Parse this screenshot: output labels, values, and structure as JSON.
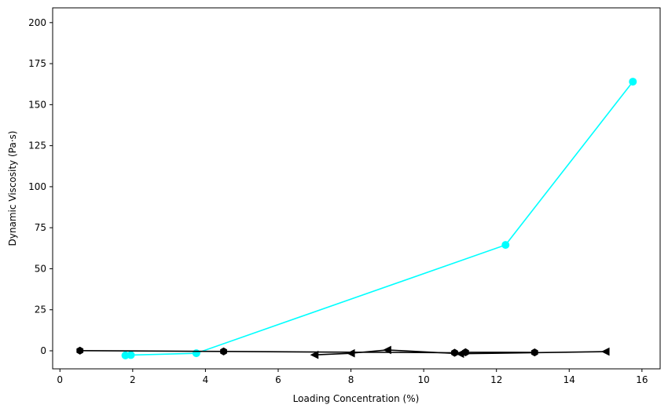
{
  "chart_data": {
    "type": "line",
    "title": "",
    "xlabel": "Loading Concentration (%)",
    "ylabel": "Dynamic Viscosity (Pa·s)",
    "xlim": [
      -0.2,
      16.5
    ],
    "ylim": [
      -11,
      209
    ],
    "xticks": [
      0,
      2,
      4,
      6,
      8,
      10,
      12,
      14,
      16
    ],
    "yticks": [
      0,
      25,
      50,
      75,
      100,
      125,
      150,
      175,
      200
    ],
    "grid": false,
    "legend": "none",
    "series": [
      {
        "color": "#00ffff",
        "marker": "circle",
        "x": [
          1.8,
          1.95,
          3.75,
          12.25,
          15.75
        ],
        "y": [
          -2.8,
          -2.6,
          -1.5,
          64.5,
          164
        ]
      },
      {
        "color": "#000000",
        "marker": "hexagon",
        "x": [
          0.55,
          4.5,
          10.85,
          11.15,
          13.05
        ],
        "y": [
          0.1,
          -0.4,
          -1.2,
          -0.9,
          -1.0
        ]
      },
      {
        "color": "#000000",
        "marker": "triangle-left",
        "x": [
          7.0,
          8.0,
          9.0,
          11.0,
          15.0
        ],
        "y": [
          -2.5,
          -1.5,
          0.5,
          -1.8,
          -0.5
        ]
      }
    ]
  }
}
